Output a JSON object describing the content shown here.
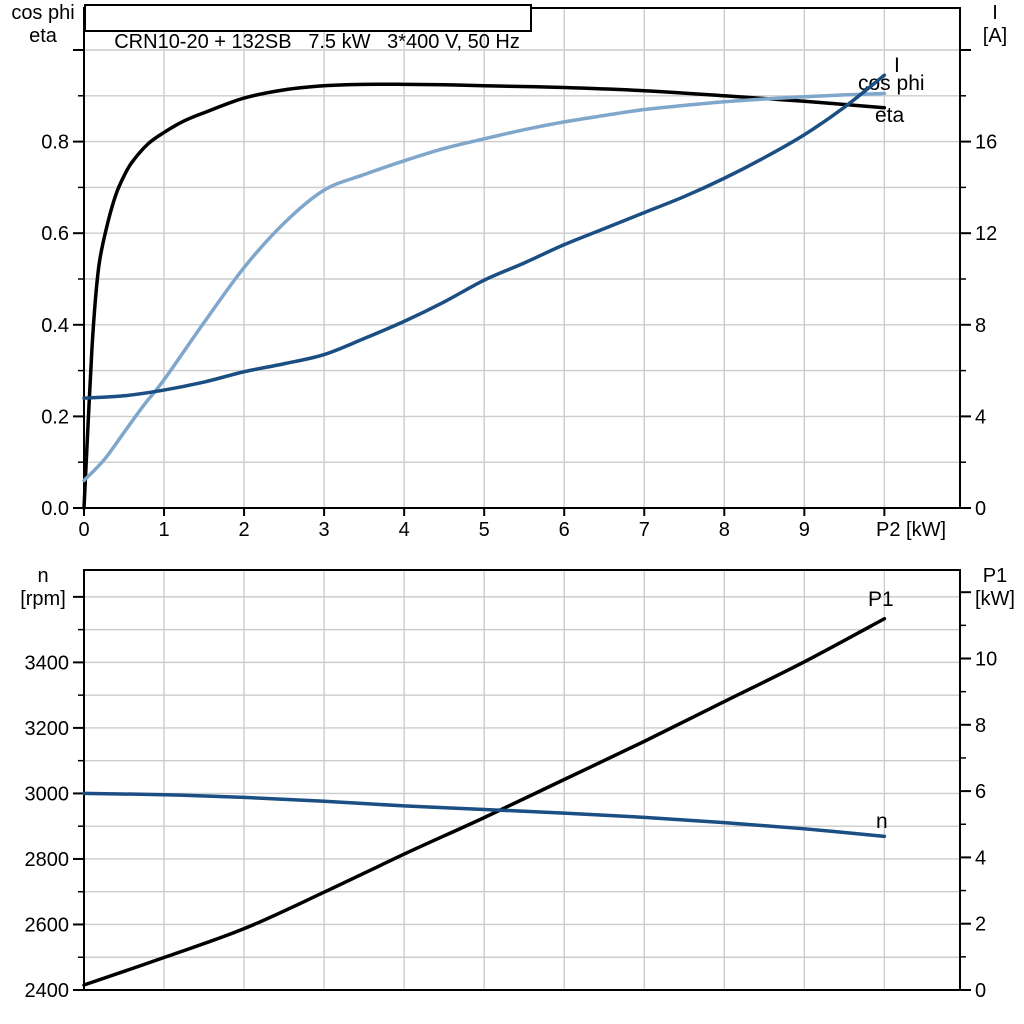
{
  "title": "CRN10-20 + 132SB   7.5 kW   3*400 V, 50 Hz",
  "colors": {
    "black_curve": "#000000",
    "dark_blue": "#1b4e82",
    "light_blue": "#7fa6cb",
    "grid": "#cccccc",
    "frame": "#000000",
    "background": "#ffffff",
    "text": "#000000"
  },
  "chart_data": [
    {
      "type": "line",
      "id": "motor-electrical-curves",
      "x_axis": {
        "label": "P2 [kW]",
        "range": [
          0,
          10.945
        ],
        "grid_step": 1,
        "ticks": [
          {
            "v": 0,
            "t": "0"
          },
          {
            "v": 1,
            "t": "1"
          },
          {
            "v": 2,
            "t": "2"
          },
          {
            "v": 3,
            "t": "3"
          },
          {
            "v": 4,
            "t": "4"
          },
          {
            "v": 5,
            "t": "5"
          },
          {
            "v": 6,
            "t": "6"
          },
          {
            "v": 7,
            "t": "7"
          },
          {
            "v": 8,
            "t": "8"
          },
          {
            "v": 9,
            "t": "9"
          },
          {
            "v": 10,
            "t": ""
          }
        ]
      },
      "left_axis": {
        "label_lines": [
          "cos phi",
          "eta"
        ],
        "range": [
          0,
          1.0917
        ],
        "grid_step": 0.1,
        "ticks": [
          {
            "v": 0,
            "t": "0.0"
          },
          {
            "v": 0.2,
            "t": "0.2"
          },
          {
            "v": 0.4,
            "t": "0.4"
          },
          {
            "v": 0.6,
            "t": "0.6"
          },
          {
            "v": 0.8,
            "t": "0.8"
          },
          {
            "v": 1,
            "t": ""
          }
        ],
        "minor": [
          0.1,
          0.3,
          0.5,
          0.7,
          0.9
        ]
      },
      "right_axis": {
        "label_lines": [
          "I",
          "[A]"
        ],
        "range": [
          0,
          21.834
        ],
        "ticks": [
          {
            "v": 0,
            "t": "0"
          },
          {
            "v": 4,
            "t": "4"
          },
          {
            "v": 8,
            "t": "8"
          },
          {
            "v": 12,
            "t": "12"
          },
          {
            "v": 16,
            "t": "16"
          },
          {
            "v": 20,
            "t": ""
          }
        ],
        "minor": [
          2,
          6,
          10,
          14,
          18
        ]
      },
      "series": [
        {
          "id": "eta",
          "name": "eta",
          "axis": "left",
          "color_key": "black_curve",
          "x": [
            0,
            0.05,
            0.1,
            0.15,
            0.2,
            0.3,
            0.4,
            0.5,
            0.6,
            0.8,
            1,
            1.25,
            1.5,
            2,
            2.5,
            3,
            3.5,
            4,
            4.5,
            5,
            6,
            7,
            8,
            9,
            10
          ],
          "y": [
            0,
            0.18,
            0.35,
            0.47,
            0.545,
            0.625,
            0.685,
            0.725,
            0.755,
            0.795,
            0.82,
            0.845,
            0.863,
            0.895,
            0.913,
            0.922,
            0.925,
            0.925,
            0.924,
            0.922,
            0.918,
            0.911,
            0.9,
            0.888,
            0.874
          ]
        },
        {
          "id": "cos-phi",
          "name": "cos phi",
          "axis": "left",
          "color_key": "light_blue",
          "x": [
            0,
            0.25,
            0.5,
            0.75,
            1,
            1.5,
            2,
            2.5,
            3,
            3.5,
            4,
            4.5,
            5,
            5.5,
            6,
            6.5,
            7,
            7.5,
            8,
            8.5,
            9,
            9.5,
            10
          ],
          "y": [
            0.06,
            0.105,
            0.165,
            0.225,
            0.28,
            0.405,
            0.525,
            0.622,
            0.694,
            0.728,
            0.758,
            0.785,
            0.806,
            0.826,
            0.843,
            0.857,
            0.87,
            0.879,
            0.887,
            0.893,
            0.898,
            0.902,
            0.905
          ]
        },
        {
          "id": "current-i",
          "name": "I",
          "axis": "right",
          "color_key": "dark_blue",
          "x": [
            0,
            0.5,
            1,
            1.5,
            2,
            2.5,
            3,
            3.5,
            4,
            4.5,
            5,
            5.5,
            6,
            6.5,
            7,
            7.5,
            8,
            8.5,
            9,
            9.5,
            10
          ],
          "y": [
            4.8,
            4.9,
            5.15,
            5.5,
            5.95,
            6.3,
            6.7,
            7.4,
            8.15,
            9,
            9.95,
            10.7,
            11.5,
            12.2,
            12.9,
            13.6,
            14.4,
            15.3,
            16.3,
            17.5,
            18.9
          ]
        }
      ]
    },
    {
      "type": "line",
      "id": "speed-power-curves",
      "x_axis": {
        "label": "",
        "range": [
          0,
          10.945
        ],
        "grid_step": 1,
        "ticks": []
      },
      "left_axis": {
        "label_lines": [
          "n",
          "[rpm]"
        ],
        "range": [
          2400,
          3682
        ],
        "grid_step": 100,
        "ticks": [
          {
            "v": 2400,
            "t": "2400"
          },
          {
            "v": 2600,
            "t": "2600"
          },
          {
            "v": 2800,
            "t": "2800"
          },
          {
            "v": 3000,
            "t": "3000"
          },
          {
            "v": 3200,
            "t": "3200"
          },
          {
            "v": 3400,
            "t": "3400"
          },
          {
            "v": 3600,
            "t": ""
          }
        ],
        "minor": [
          2500,
          2700,
          2900,
          3100,
          3300,
          3500
        ]
      },
      "right_axis": {
        "label_lines": [
          "P1",
          "[kW]"
        ],
        "range": [
          0,
          12.67
        ],
        "ticks": [
          {
            "v": 0,
            "t": "0"
          },
          {
            "v": 2,
            "t": "2"
          },
          {
            "v": 4,
            "t": "4"
          },
          {
            "v": 6,
            "t": "6"
          },
          {
            "v": 8,
            "t": "8"
          },
          {
            "v": 10,
            "t": "10"
          },
          {
            "v": 12,
            "t": ""
          }
        ],
        "minor": [
          1,
          3,
          5,
          7,
          9,
          11
        ]
      },
      "series": [
        {
          "id": "p1",
          "name": "P1",
          "axis": "right",
          "color_key": "black_curve",
          "x": [
            0,
            1,
            2,
            3,
            4,
            5,
            6,
            7,
            8,
            9,
            10
          ],
          "y": [
            0.15,
            0.98,
            1.85,
            2.95,
            4.1,
            5.2,
            6.35,
            7.5,
            8.7,
            9.9,
            11.2
          ]
        },
        {
          "id": "speed-n",
          "name": "n",
          "axis": "left",
          "color_key": "dark_blue",
          "x": [
            0,
            1,
            2,
            3,
            4,
            5,
            6,
            7,
            8,
            9,
            10
          ],
          "y": [
            3000,
            2996,
            2988,
            2976,
            2962,
            2951,
            2940,
            2927,
            2911,
            2892,
            2869
          ]
        }
      ]
    }
  ]
}
